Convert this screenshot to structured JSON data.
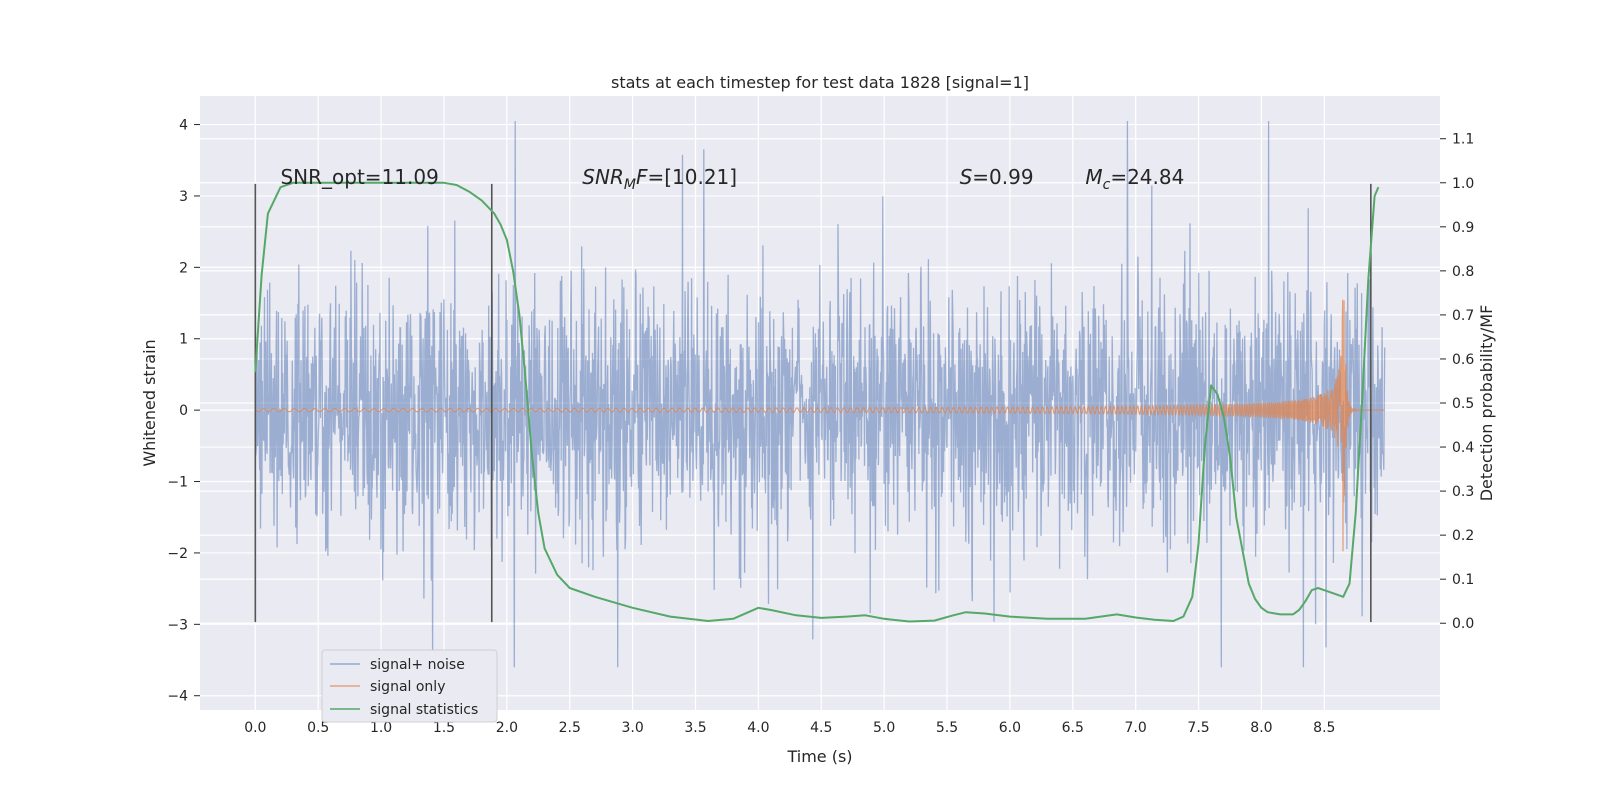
{
  "chart_data": {
    "type": "line",
    "title": "stats at each timestep for test data 1828 [signal=1]",
    "xlabel": "Time (s)",
    "ylabel": "Whitened strain",
    "ylabel_right": "Detection probability/MF",
    "xlim": [
      -0.44,
      9.42
    ],
    "ylim": [
      -4.2,
      4.4
    ],
    "ylim_right": [
      -0.197,
      1.197
    ],
    "x_ticks": [
      "0.0",
      "0.5",
      "1.0",
      "1.5",
      "2.0",
      "2.5",
      "3.0",
      "3.5",
      "4.0",
      "4.5",
      "5.0",
      "5.5",
      "6.0",
      "6.5",
      "7.0",
      "7.5",
      "8.0",
      "8.5"
    ],
    "y_ticks": [
      "−4",
      "−3",
      "−2",
      "−1",
      "0",
      "1",
      "2",
      "3",
      "4"
    ],
    "y_ticks_right": [
      "0.0",
      "0.1",
      "0.2",
      "0.3",
      "0.4",
      "0.5",
      "0.6",
      "0.7",
      "0.8",
      "0.9",
      "1.0",
      "1.1"
    ],
    "grid": true,
    "legend_position": "bottom-left",
    "annotations": [
      {
        "text": "SNR_opt=11.09",
        "x": 0.2
      },
      {
        "text": "SNR",
        "sub": "M",
        "suffix": "F=[10.21]",
        "italic": true,
        "x": 2.6
      },
      {
        "text": "S",
        "suffix": "=0.99",
        "italic": true,
        "x": 5.6
      },
      {
        "text": "M",
        "sub": "c",
        "suffix": "=24.84",
        "italic": true,
        "x": 6.6
      }
    ],
    "vertical_markers": [
      0.0,
      1.88,
      8.87
    ],
    "series": [
      {
        "name": "signal+ noise",
        "color": "#4c72b0",
        "kind": "noise",
        "x_range": [
          0.0,
          8.98
        ],
        "typical_amplitude": 2.0,
        "max_y": 4.05,
        "min_y": -3.6
      },
      {
        "name": "signal only",
        "color": "#dd8452",
        "kind": "chirp",
        "x_range": [
          0.0,
          8.98
        ],
        "merger_time": 8.65,
        "peak_amplitude": 2.4
      },
      {
        "name": "signal statistics",
        "color": "#55a868",
        "axis": "right",
        "x": [
          0.0,
          0.05,
          0.1,
          0.2,
          0.3,
          0.5,
          0.8,
          1.0,
          1.2,
          1.4,
          1.5,
          1.6,
          1.7,
          1.8,
          1.9,
          1.95,
          2.0,
          2.05,
          2.1,
          2.15,
          2.2,
          2.25,
          2.3,
          2.4,
          2.5,
          2.7,
          3.0,
          3.3,
          3.6,
          3.8,
          4.0,
          4.1,
          4.3,
          4.5,
          4.7,
          4.85,
          5.0,
          5.2,
          5.4,
          5.55,
          5.65,
          5.8,
          6.0,
          6.3,
          6.6,
          6.85,
          7.0,
          7.15,
          7.3,
          7.38,
          7.45,
          7.5,
          7.55,
          7.6,
          7.65,
          7.7,
          7.75,
          7.8,
          7.9,
          7.95,
          8.0,
          8.05,
          8.15,
          8.25,
          8.3,
          8.35,
          8.4,
          8.45,
          8.5,
          8.6,
          8.65,
          8.7,
          8.75,
          8.8,
          8.85,
          8.9,
          8.93
        ],
        "values": [
          0.57,
          0.79,
          0.93,
          0.99,
          1.0,
          1.0,
          1.0,
          1.0,
          1.0,
          1.0,
          1.0,
          0.995,
          0.98,
          0.96,
          0.93,
          0.905,
          0.87,
          0.8,
          0.7,
          0.55,
          0.38,
          0.25,
          0.17,
          0.11,
          0.08,
          0.06,
          0.035,
          0.015,
          0.005,
          0.01,
          0.035,
          0.03,
          0.018,
          0.012,
          0.015,
          0.018,
          0.01,
          0.004,
          0.006,
          0.018,
          0.025,
          0.022,
          0.015,
          0.01,
          0.01,
          0.02,
          0.013,
          0.008,
          0.005,
          0.015,
          0.06,
          0.18,
          0.4,
          0.54,
          0.52,
          0.47,
          0.38,
          0.24,
          0.09,
          0.055,
          0.035,
          0.025,
          0.02,
          0.02,
          0.03,
          0.05,
          0.075,
          0.08,
          0.075,
          0.065,
          0.06,
          0.09,
          0.25,
          0.5,
          0.78,
          0.97,
          0.99
        ]
      }
    ]
  }
}
